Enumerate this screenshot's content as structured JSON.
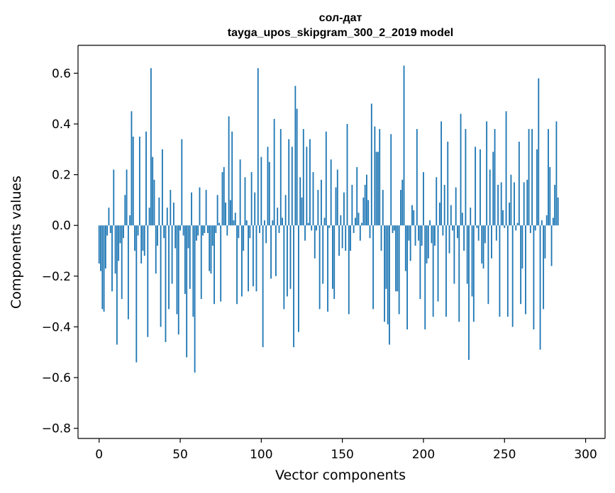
{
  "chart_data": {
    "type": "bar",
    "title": "сол-дат",
    "subtitle": "tayga_upos_skipgram_300_2_2019 model",
    "xlabel": "Vector components",
    "ylabel": "Components values",
    "xlim": [
      -13,
      312
    ],
    "ylim": [
      -0.84,
      0.71
    ],
    "xticks": [
      0,
      50,
      100,
      150,
      200,
      250,
      300
    ],
    "xtick_labels": [
      "0",
      "50",
      "100",
      "150",
      "200",
      "250",
      "300"
    ],
    "yticks": [
      -0.8,
      -0.6,
      -0.4,
      -0.2,
      0.0,
      0.2,
      0.4,
      0.6
    ],
    "ytick_labels": [
      "−0.8",
      "−0.6",
      "−0.4",
      "−0.2",
      "0.0",
      "0.2",
      "0.4",
      "0.6"
    ],
    "bar_color": "#1f77b4",
    "values": [
      -0.15,
      -0.18,
      -0.33,
      -0.34,
      -0.17,
      -0.04,
      0.07,
      -0.03,
      -0.26,
      0.22,
      -0.19,
      -0.47,
      -0.14,
      -0.07,
      -0.29,
      -0.05,
      0.12,
      0.22,
      -0.37,
      0.04,
      0.45,
      0.35,
      -0.1,
      -0.54,
      -0.04,
      0.35,
      -0.15,
      -0.1,
      -0.12,
      0.37,
      -0.44,
      0.07,
      0.62,
      0.27,
      0.18,
      -0.19,
      -0.08,
      0.11,
      -0.4,
      0.3,
      -0.05,
      -0.46,
      0.07,
      -0.33,
      0.14,
      -0.23,
      0.09,
      -0.09,
      -0.35,
      -0.43,
      -0.02,
      0.34,
      -0.04,
      -0.27,
      -0.52,
      -0.09,
      -0.25,
      0.13,
      -0.36,
      -0.58,
      -0.06,
      -0.04,
      0.15,
      -0.29,
      -0.04,
      -0.03,
      0.14,
      -0.03,
      -0.18,
      -0.19,
      -0.08,
      -0.31,
      -0.03,
      0.12,
      0.01,
      -0.3,
      0.21,
      0.23,
      0.09,
      -0.04,
      0.43,
      0.1,
      0.37,
      0.02,
      0.05,
      -0.31,
      -0.05,
      0.26,
      -0.28,
      -0.1,
      0.19,
      0.02,
      -0.26,
      -0.05,
      0.21,
      -0.24,
      0.13,
      -0.26,
      0.62,
      -0.03,
      0.27,
      -0.48,
      0.02,
      -0.07,
      0.31,
      0.25,
      -0.21,
      0.02,
      0.42,
      -0.2,
      0.07,
      -0.03,
      0.38,
      0.03,
      -0.33,
      0.12,
      -0.28,
      0.34,
      -0.25,
      0.31,
      -0.48,
      0.55,
      0.46,
      -0.42,
      0.19,
      0.11,
      0.38,
      -0.06,
      0.31,
      0.01,
      0.34,
      -0.02,
      0.21,
      -0.13,
      -0.02,
      0.14,
      -0.33,
      0.18,
      -0.23,
      0.03,
      0.37,
      -0.34,
      -0.01,
      0.26,
      -0.25,
      -0.29,
      0.15,
      0.22,
      -0.12,
      0.04,
      -0.09,
      0.13,
      -0.1,
      0.4,
      -0.35,
      -0.1,
      0.16,
      -0.03,
      0.03,
      0.23,
      0.05,
      -0.06,
      0.01,
      0.11,
      0.16,
      0.2,
      0.1,
      -0.05,
      0.48,
      -0.33,
      0.39,
      0.29,
      0.29,
      0.38,
      -0.1,
      0.14,
      -0.38,
      -0.25,
      -0.39,
      -0.47,
      0.36,
      -0.03,
      -0.02,
      -0.26,
      -0.26,
      -0.35,
      0.14,
      0.18,
      0.63,
      -0.18,
      -0.41,
      -0.06,
      -0.14,
      0.08,
      0.06,
      -0.08,
      0.38,
      -0.06,
      -0.29,
      -0.08,
      0.21,
      -0.41,
      -0.15,
      -0.13,
      0.02,
      -0.07,
      -0.36,
      -0.08,
      0.19,
      -0.3,
      0.09,
      0.41,
      -0.04,
      0.16,
      -0.36,
      0.33,
      -0.11,
      0.08,
      -0.02,
      -0.23,
      0.15,
      -0.05,
      -0.38,
      0.44,
      0.05,
      -0.1,
      0.38,
      -0.23,
      -0.53,
      0.07,
      -0.28,
      -0.38,
      0.31,
      -0.01,
      -0.06,
      0.3,
      -0.15,
      -0.17,
      -0.07,
      0.41,
      -0.31,
      0.22,
      -0.13,
      0.29,
      0.38,
      -0.06,
      0.16,
      -0.36,
      0.17,
      0.06,
      -0.01,
      0.45,
      -0.36,
      0.09,
      0.2,
      -0.4,
      0.17,
      -0.02,
      0.01,
      0.33,
      -0.31,
      -0.17,
      0.17,
      -0.35,
      0.18,
      0.38,
      -0.03,
      0.38,
      -0.41,
      -0.02,
      0.3,
      0.58,
      -0.49,
      0.02,
      -0.33,
      -0.13,
      0.04,
      0.38,
      0.23,
      -0.16,
      0.03,
      0.16,
      0.41,
      0.11
    ]
  }
}
